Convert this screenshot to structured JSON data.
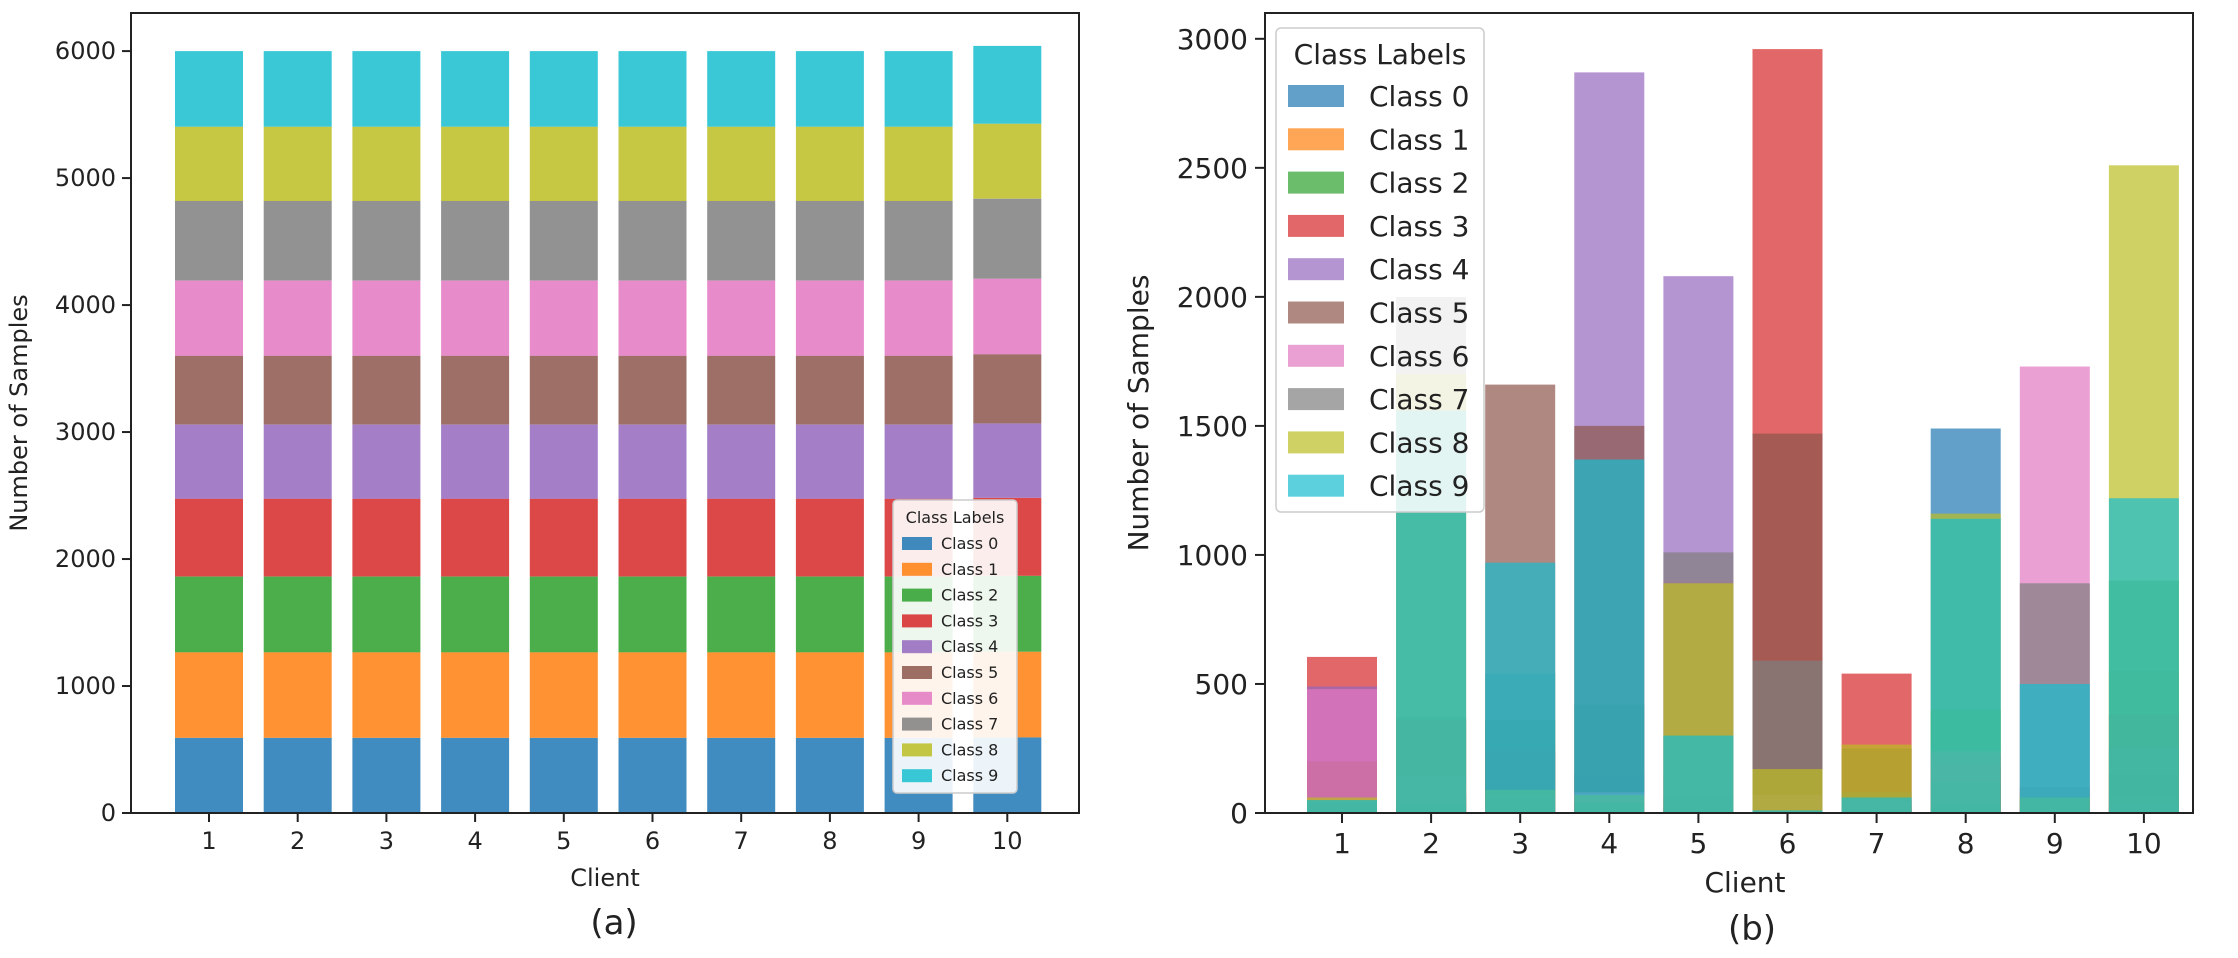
{
  "figure": {
    "panels": [
      {
        "caption": "(a)"
      },
      {
        "caption": "(b)"
      }
    ]
  },
  "legend_colors": [
    "#1f77b4",
    "#ff7f0e",
    "#2ca02c",
    "#d62728",
    "#9467bd",
    "#8c564b",
    "#e377c2",
    "#7f7f7f",
    "#bcbd22",
    "#17becf"
  ],
  "chart_data": [
    {
      "type": "bar",
      "stacked": true,
      "title": "",
      "xlabel": "Client",
      "ylabel": "Number of Samples",
      "caption": "(a)",
      "categories": [
        "1",
        "2",
        "3",
        "4",
        "5",
        "6",
        "7",
        "8",
        "9",
        "10"
      ],
      "ylim": [
        0,
        6300
      ],
      "yticks": [
        0,
        1000,
        2000,
        3000,
        4000,
        5000,
        6000
      ],
      "legend_title": "Class Labels",
      "legend_position": "lower-right",
      "bar_opacity": 0.85,
      "series": [
        {
          "name": "Class 0",
          "values": [
            592,
            592,
            592,
            592,
            592,
            592,
            592,
            592,
            592,
            595
          ]
        },
        {
          "name": "Class 1",
          "values": [
            674,
            674,
            674,
            674,
            674,
            674,
            674,
            674,
            674,
            675
          ]
        },
        {
          "name": "Class 2",
          "values": [
            596,
            596,
            596,
            596,
            596,
            596,
            596,
            596,
            596,
            598
          ]
        },
        {
          "name": "Class 3",
          "values": [
            613,
            613,
            613,
            613,
            613,
            613,
            613,
            613,
            613,
            614
          ]
        },
        {
          "name": "Class 4",
          "values": [
            584,
            584,
            584,
            584,
            584,
            584,
            584,
            584,
            584,
            586
          ]
        },
        {
          "name": "Class 5",
          "values": [
            542,
            542,
            542,
            542,
            542,
            542,
            542,
            542,
            542,
            545
          ]
        },
        {
          "name": "Class 6",
          "values": [
            592,
            592,
            592,
            592,
            592,
            592,
            592,
            592,
            592,
            595
          ]
        },
        {
          "name": "Class 7",
          "values": [
            627,
            627,
            627,
            627,
            627,
            627,
            627,
            627,
            627,
            630
          ]
        },
        {
          "name": "Class 8",
          "values": [
            585,
            585,
            585,
            585,
            585,
            585,
            585,
            585,
            585,
            590
          ]
        },
        {
          "name": "Class 9",
          "values": [
            595,
            595,
            595,
            595,
            595,
            595,
            595,
            595,
            595,
            613
          ]
        }
      ]
    },
    {
      "type": "bar",
      "stacked": false,
      "overlaid": true,
      "title": "",
      "xlabel": "Client",
      "ylabel": "Number of Samples",
      "caption": "(b)",
      "categories": [
        "1",
        "2",
        "3",
        "4",
        "5",
        "6",
        "7",
        "8",
        "9",
        "10"
      ],
      "ylim": [
        0,
        3100
      ],
      "yticks": [
        0,
        500,
        1000,
        1500,
        2000,
        2500,
        3000
      ],
      "legend_title": "Class Labels",
      "legend_position": "upper-left",
      "bar_opacity": 0.7,
      "series": [
        {
          "name": "Class 0",
          "values": [
            30,
            60,
            20,
            150,
            20,
            5,
            30,
            1490,
            10,
            20
          ]
        },
        {
          "name": "Class 1",
          "values": [
            20,
            90,
            30,
            10,
            30,
            10,
            20,
            50,
            70,
            550
          ]
        },
        {
          "name": "Class 2",
          "values": [
            40,
            370,
            360,
            420,
            300,
            5,
            50,
            400,
            60,
            900
          ]
        },
        {
          "name": "Class 3",
          "values": [
            605,
            360,
            240,
            40,
            150,
            2960,
            540,
            180,
            10,
            150
          ]
        },
        {
          "name": "Class 4",
          "values": [
            490,
            30,
            60,
            2870,
            2080,
            20,
            10,
            30,
            30,
            60
          ]
        },
        {
          "name": "Class 5",
          "values": [
            200,
            70,
            1660,
            1500,
            60,
            1470,
            250,
            220,
            100,
            380
          ]
        },
        {
          "name": "Class 6",
          "values": [
            480,
            150,
            70,
            80,
            900,
            70,
            50,
            240,
            1730,
            30
          ]
        },
        {
          "name": "Class 7",
          "values": [
            50,
            2000,
            540,
            40,
            1010,
            590,
            80,
            120,
            890,
            250
          ]
        },
        {
          "name": "Class 8",
          "values": [
            60,
            1700,
            90,
            70,
            890,
            170,
            265,
            1160,
            60,
            2510
          ]
        },
        {
          "name": "Class 9",
          "values": [
            50,
            1560,
            970,
            1370,
            300,
            10,
            60,
            1140,
            500,
            1220
          ]
        }
      ]
    }
  ]
}
